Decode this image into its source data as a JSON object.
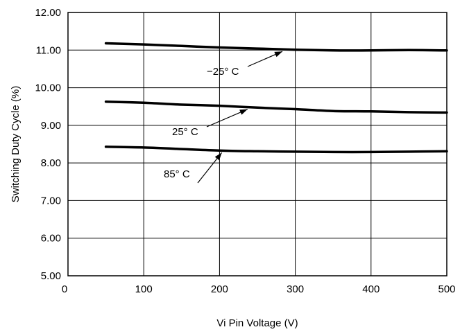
{
  "chart_data": {
    "type": "line",
    "title": "",
    "xlabel": "Vi Pin Voltage (V)",
    "ylabel": "Switching Duty Cycle (%)",
    "xlim": [
      0,
      500
    ],
    "ylim": [
      5.0,
      12.0
    ],
    "x_ticks": [
      0,
      100,
      200,
      300,
      400,
      500
    ],
    "x_tick_labels": [
      "0",
      "100",
      "200",
      "300",
      "400",
      "500"
    ],
    "y_ticks": [
      5.0,
      6.0,
      7.0,
      8.0,
      9.0,
      10.0,
      11.0,
      12.0
    ],
    "y_tick_labels": [
      "5.00",
      "6.00",
      "7.00",
      "8.00",
      "9.00",
      "10.00",
      "11.00",
      "12.00"
    ],
    "grid": true,
    "legend": "none",
    "series": [
      {
        "name": "−25° C",
        "x": [
          50,
          100,
          150,
          200,
          250,
          300,
          350,
          400,
          450,
          500
        ],
        "y": [
          11.18,
          11.15,
          11.11,
          11.07,
          11.04,
          11.01,
          10.99,
          10.99,
          11.0,
          10.99
        ]
      },
      {
        "name": "25° C",
        "x": [
          50,
          100,
          150,
          200,
          250,
          300,
          350,
          400,
          450,
          500
        ],
        "y": [
          9.63,
          9.6,
          9.55,
          9.52,
          9.47,
          9.43,
          9.38,
          9.37,
          9.35,
          9.34
        ]
      },
      {
        "name": "85° C",
        "x": [
          50,
          100,
          150,
          200,
          250,
          300,
          350,
          400,
          450,
          500
        ],
        "y": [
          8.43,
          8.41,
          8.37,
          8.33,
          8.31,
          8.3,
          8.29,
          8.29,
          8.3,
          8.31
        ]
      }
    ],
    "annotations": [
      {
        "text": "−25° C",
        "series": 0,
        "points_to_x": 283
      },
      {
        "text": "25° C",
        "series": 1,
        "points_to_x": 237
      },
      {
        "text": "85° C",
        "series": 2,
        "points_to_x": 203
      }
    ]
  }
}
